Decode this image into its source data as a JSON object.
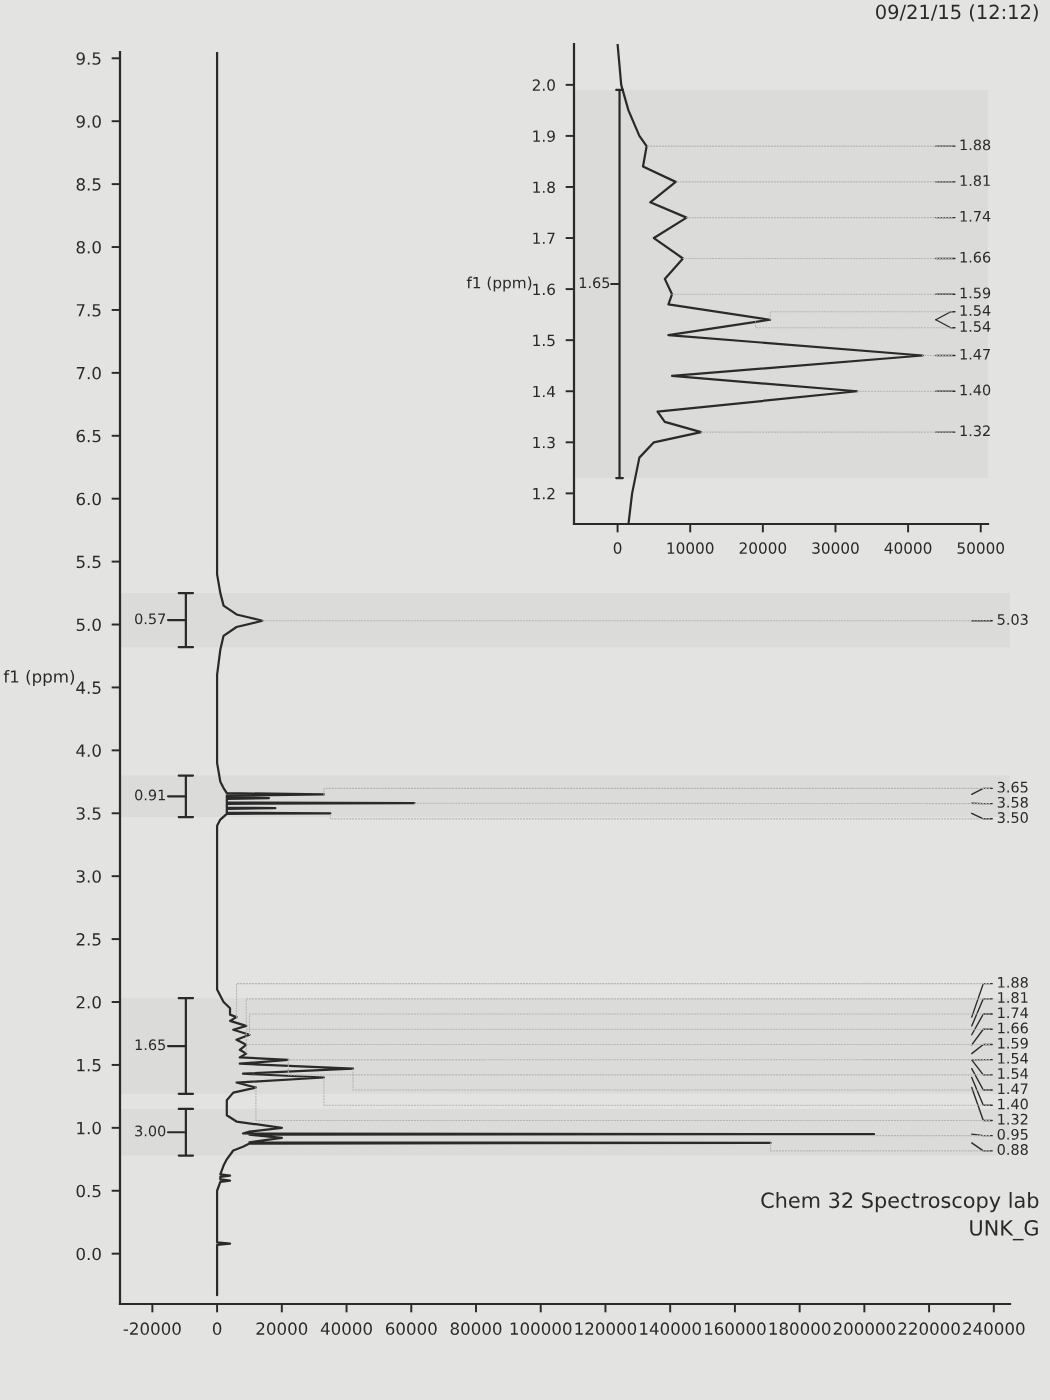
{
  "chart_data": [
    {
      "type": "line",
      "orientation": "horizontal",
      "title": "Chem 32 Spectroscopy lab",
      "subtitle": "UNK_G",
      "ylabel": "f1 (ppm)",
      "series": [
        {
          "color": "#2a2a2a",
          "x": [
            9.55,
            5.6,
            5.4,
            5.25,
            5.15,
            5.08,
            5.03,
            4.98,
            4.91,
            4.8,
            4.6,
            4.3,
            3.9,
            3.75,
            3.7,
            3.66,
            3.65,
            3.64,
            3.625,
            3.62,
            3.615,
            3.6,
            3.585,
            3.58,
            3.575,
            3.56,
            3.545,
            3.54,
            3.535,
            3.52,
            3.505,
            3.5,
            3.495,
            3.45,
            3.4,
            3.0,
            2.5,
            2.1,
            2.0,
            1.95,
            1.9,
            1.88,
            1.85,
            1.81,
            1.78,
            1.74,
            1.7,
            1.66,
            1.62,
            1.59,
            1.56,
            1.54,
            1.51,
            1.47,
            1.43,
            1.4,
            1.36,
            1.32,
            1.28,
            1.22,
            1.1,
            1.05,
            1.0,
            0.97,
            0.955,
            0.95,
            0.945,
            0.92,
            0.885,
            0.88,
            0.875,
            0.85,
            0.82,
            0.75,
            0.7,
            0.63,
            0.62,
            0.61,
            0.59,
            0.58,
            0.57,
            0.5,
            0.3,
            0.09,
            0.08,
            0.07,
            0.0,
            -0.33
          ],
          "values": [
            0,
            0,
            0,
            1000,
            2000,
            6000,
            14000,
            6000,
            2000,
            1000,
            0,
            0,
            0,
            1000,
            2000,
            3000,
            33000,
            3000,
            3000,
            16000,
            3000,
            3000,
            3000,
            61000,
            3000,
            3000,
            3000,
            18000,
            3000,
            3000,
            3000,
            35000,
            3000,
            1000,
            0,
            0,
            0,
            0,
            2000,
            4000,
            4000,
            6000,
            4000,
            9000,
            5000,
            10000,
            6000,
            9000,
            7000,
            9000,
            7000,
            22000,
            7000,
            42000,
            8000,
            33000,
            6000,
            12000,
            5000,
            3000,
            3000,
            6000,
            20000,
            10000,
            8000,
            203000,
            10000,
            20000,
            10000,
            171000,
            10000,
            8000,
            5000,
            3000,
            2000,
            1000,
            4000,
            1000,
            1000,
            4000,
            1000,
            0,
            0,
            0,
            4000,
            0,
            0,
            0
          ]
        }
      ],
      "ylim": [
        -0.4,
        9.55
      ],
      "xlim": [
        -30000,
        245000
      ],
      "yticks": [
        9.5,
        {
          "value": 9,
          "label": "9.0"
        },
        8.5,
        {
          "value": 8,
          "label": "8.0"
        },
        7.5,
        {
          "value": 7,
          "label": "7.0"
        },
        6.5,
        {
          "value": 6,
          "label": "6.0"
        },
        5.5,
        {
          "value": 5,
          "label": "5.0"
        },
        4.5,
        {
          "value": 4,
          "label": "4.0"
        },
        3.5,
        {
          "value": 3,
          "label": "3.0"
        },
        2.5,
        {
          "value": 2,
          "label": "2.0"
        },
        1.5,
        {
          "value": 1,
          "label": "1.0"
        },
        0.5,
        {
          "value": 0,
          "label": "0.0"
        }
      ],
      "xticks": [
        -20000,
        0,
        20000,
        40000,
        60000,
        80000,
        100000,
        120000,
        140000,
        160000,
        180000,
        200000,
        220000,
        240000
      ],
      "bands": [
        {
          "axis": "y",
          "from": 5.25,
          "to": 4.82,
          "label": "0.57"
        },
        {
          "axis": "y",
          "from": 3.8,
          "to": 3.47,
          "label": "0.91"
        },
        {
          "axis": "y",
          "from": 2.03,
          "to": 1.27,
          "label": "1.65"
        },
        {
          "axis": "y",
          "from": 1.15,
          "to": 0.78,
          "label": "3.00"
        }
      ],
      "annotations": [
        "09/21/15 (12:12)",
        {
          "text": "5.03",
          "x": 14000,
          "y": 5.03
        },
        {
          "text": "3.65",
          "x": 33000,
          "y": 3.65
        },
        {
          "text": "3.58",
          "x": 61000,
          "y": 3.58
        },
        {
          "text": "3.50",
          "x": 35000,
          "y": 3.5
        },
        {
          "text": "1.88",
          "x": 6000,
          "y": 1.88
        },
        {
          "text": "1.81",
          "x": 9000,
          "y": 1.81
        },
        {
          "text": "1.74",
          "x": 10000,
          "y": 1.74
        },
        {
          "text": "1.66",
          "x": 9000,
          "y": 1.66
        },
        {
          "text": "1.59",
          "x": 9000,
          "y": 1.59
        },
        {
          "text": "1.54",
          "x": 22000,
          "y": 1.54
        },
        {
          "text": "1.54",
          "x": 22000,
          "y": 1.54
        },
        {
          "text": "1.47",
          "x": 42000,
          "y": 1.47
        },
        {
          "text": "1.40",
          "x": 33000,
          "y": 1.4
        },
        {
          "text": "1.32",
          "x": 12000,
          "y": 1.32
        },
        {
          "text": "0.95",
          "x": 203000,
          "y": 0.95
        },
        {
          "text": "0.88",
          "x": 171000,
          "y": 0.88
        }
      ]
    },
    {
      "type": "line",
      "orientation": "horizontal",
      "ylabel": "f1 (ppm)",
      "series": [
        {
          "color": "#2a2a2a",
          "x": [
            2.08,
            2.0,
            1.95,
            1.9,
            1.88,
            1.84,
            1.81,
            1.77,
            1.74,
            1.7,
            1.66,
            1.62,
            1.59,
            1.57,
            1.54,
            1.51,
            1.47,
            1.43,
            1.4,
            1.36,
            1.34,
            1.32,
            1.3,
            1.27,
            1.2,
            1.14
          ],
          "values": [
            0,
            500,
            1500,
            3000,
            4000,
            3500,
            8000,
            4500,
            9500,
            5000,
            9000,
            6500,
            7500,
            7000,
            21000,
            7000,
            42000,
            7500,
            33000,
            5500,
            6500,
            11500,
            5000,
            3000,
            2000,
            1500
          ]
        }
      ],
      "ylim": [
        1.14,
        2.08
      ],
      "xlim": [
        -6000,
        51000
      ],
      "yticks": [
        {
          "value": 2,
          "label": "2.0"
        },
        1.9,
        1.8,
        1.7,
        1.6,
        1.5,
        1.4,
        1.3,
        1.2
      ],
      "xticks": [
        0,
        10000,
        20000,
        30000,
        40000,
        50000
      ],
      "bands": [
        {
          "axis": "y",
          "from": 1.99,
          "to": 1.23,
          "label": "1.65"
        }
      ],
      "annotations": [
        {
          "text": "1.88",
          "x": 4000,
          "y": 1.88
        },
        {
          "text": "1.81",
          "x": 8000,
          "y": 1.81
        },
        {
          "text": "1.74",
          "x": 9500,
          "y": 1.74
        },
        {
          "text": "1.66",
          "x": 9000,
          "y": 1.66
        },
        {
          "text": "1.59",
          "x": 7500,
          "y": 1.59
        },
        {
          "text": "1.54",
          "x": 21000,
          "y": 1.54
        },
        {
          "text": "1.54",
          "x": 19000,
          "y": 1.54
        },
        {
          "text": "1.47",
          "x": 42000,
          "y": 1.47
        },
        {
          "text": "1.40",
          "x": 33000,
          "y": 1.4
        },
        {
          "text": "1.32",
          "x": 11500,
          "y": 1.32
        }
      ]
    }
  ]
}
